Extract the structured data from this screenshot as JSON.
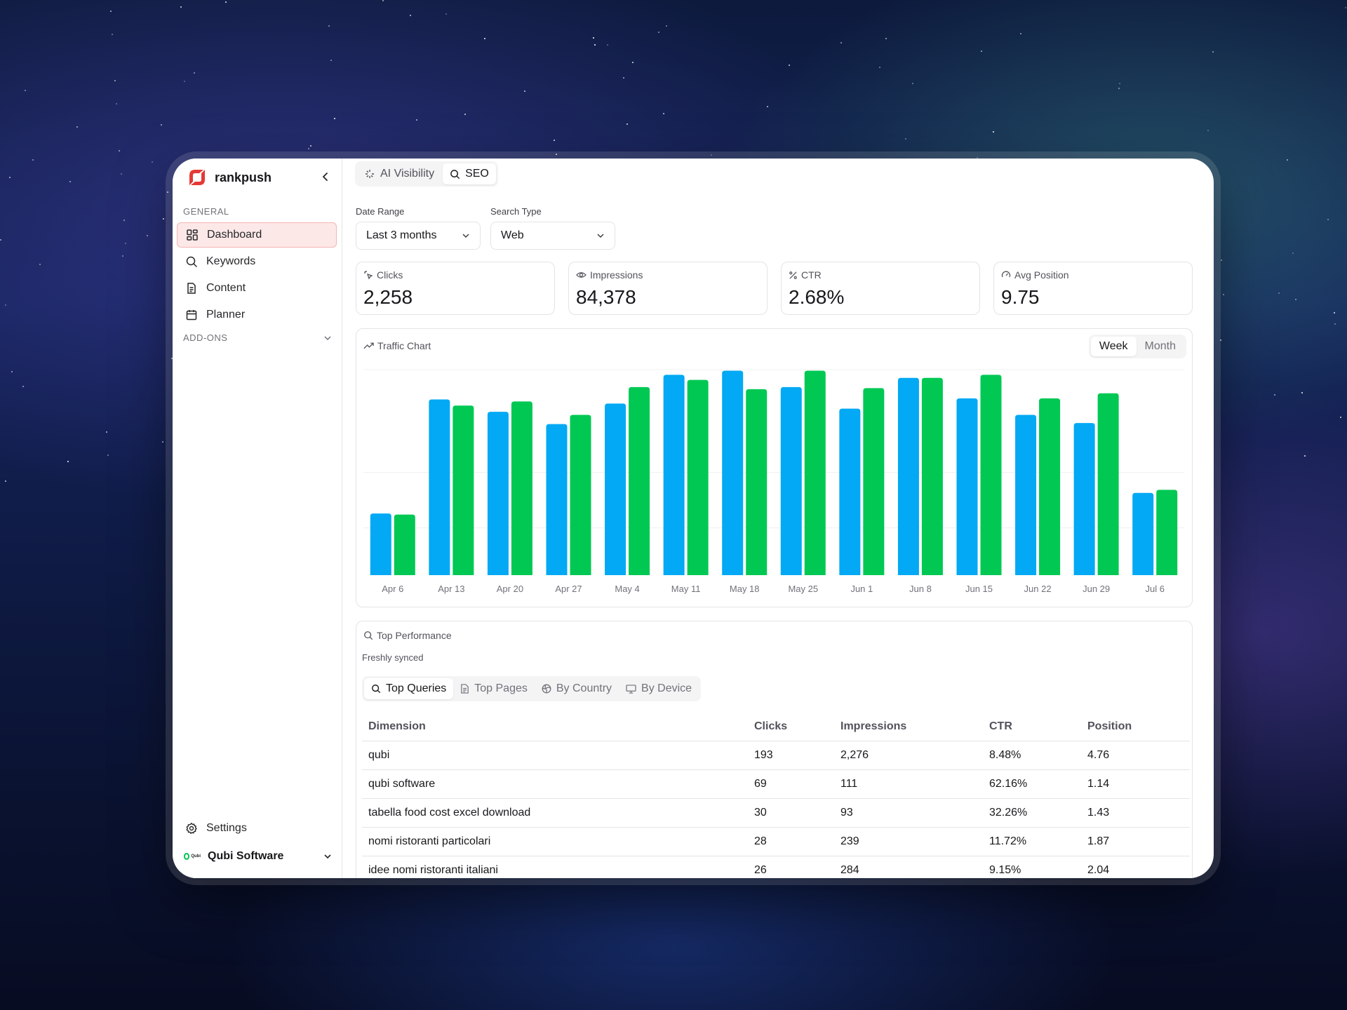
{
  "app": {
    "brand": "rankpush",
    "accent": "#e53935"
  },
  "sidebar": {
    "general_label": "GENERAL",
    "items": [
      {
        "label": "Dashboard",
        "icon": "grid-icon",
        "active": true
      },
      {
        "label": "Keywords",
        "icon": "search-icon"
      },
      {
        "label": "Content",
        "icon": "document-icon"
      },
      {
        "label": "Planner",
        "icon": "calendar-icon"
      }
    ],
    "addons_label": "ADD-ONS",
    "settings_label": "Settings",
    "org_name": "Qubi Software",
    "org_logo_text": "Qubi"
  },
  "topbar": {
    "tabs": [
      {
        "label": "AI Visibility",
        "icon": "sparkle-icon"
      },
      {
        "label": "SEO",
        "icon": "search-icon",
        "active": true
      }
    ]
  },
  "filters": {
    "date_range_label": "Date Range",
    "date_range_value": "Last 3 months",
    "search_type_label": "Search Type",
    "search_type_value": "Web"
  },
  "metrics": [
    {
      "label": "Clicks",
      "value": "2,258",
      "icon": "click-icon"
    },
    {
      "label": "Impressions",
      "value": "84,378",
      "icon": "eye-icon"
    },
    {
      "label": "CTR",
      "value": "2.68%",
      "icon": "percent-icon"
    },
    {
      "label": "Avg Position",
      "value": "9.75",
      "icon": "gauge-icon"
    }
  ],
  "traffic": {
    "title": "Traffic Chart",
    "periods": [
      "Week",
      "Month"
    ],
    "active_period": "Week"
  },
  "chart_data": {
    "type": "bar",
    "categories": [
      "Apr 6",
      "Apr 13",
      "Apr 20",
      "Apr 27",
      "May 4",
      "May 11",
      "May 18",
      "May 25",
      "Jun 1",
      "Jun 8",
      "Jun 15",
      "Jun 22",
      "Jun 29",
      "Jul 6"
    ],
    "series": [
      {
        "color": "#03a9f4",
        "values": [
          0.3,
          0.855,
          0.795,
          0.735,
          0.835,
          0.975,
          0.995,
          0.915,
          0.81,
          0.96,
          0.86,
          0.78,
          0.74,
          0.4
        ]
      },
      {
        "color": "#00c853",
        "values": [
          0.295,
          0.825,
          0.845,
          0.78,
          0.915,
          0.95,
          0.905,
          0.995,
          0.91,
          0.96,
          0.975,
          0.86,
          0.885,
          0.415
        ]
      }
    ],
    "ylim": [
      0,
      1
    ],
    "grid": true
  },
  "performance": {
    "title": "Top Performance",
    "subtitle": "Freshly synced",
    "tabs": [
      {
        "label": "Top Queries",
        "icon": "search-icon",
        "active": true
      },
      {
        "label": "Top Pages",
        "icon": "page-icon"
      },
      {
        "label": "By Country",
        "icon": "globe-icon"
      },
      {
        "label": "By Device",
        "icon": "monitor-icon"
      }
    ],
    "columns": [
      "Dimension",
      "Clicks",
      "Impressions",
      "CTR",
      "Position"
    ],
    "rows": [
      [
        "qubi",
        "193",
        "2,276",
        "8.48%",
        "4.76"
      ],
      [
        "qubi software",
        "69",
        "111",
        "62.16%",
        "1.14"
      ],
      [
        "tabella food cost excel download",
        "30",
        "93",
        "32.26%",
        "1.43"
      ],
      [
        "nomi ristoranti particolari",
        "28",
        "239",
        "11.72%",
        "1.87"
      ],
      [
        "idee nomi ristoranti italiani",
        "26",
        "284",
        "9.15%",
        "2.04"
      ]
    ]
  }
}
